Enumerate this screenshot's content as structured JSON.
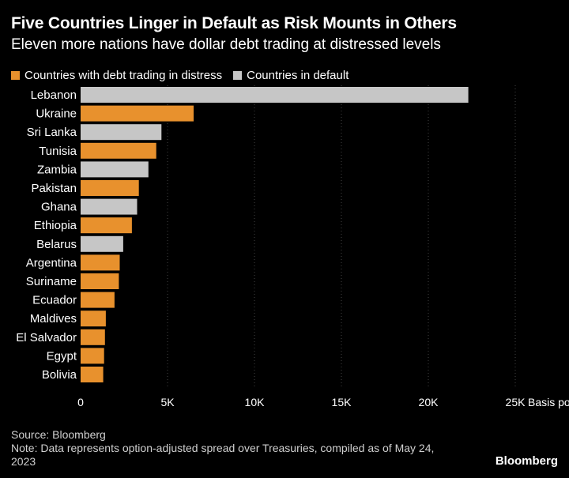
{
  "chart_data": {
    "type": "bar",
    "orientation": "horizontal",
    "title": "Five Countries Linger in Default as Risk Mounts in Others",
    "subtitle": "Eleven more nations have dollar debt trading at distressed levels",
    "legend": [
      {
        "label": "Countries with debt trading in distress",
        "color": "#e8912d"
      },
      {
        "label": "Countries in default",
        "color": "#c6c6c6"
      }
    ],
    "categories": [
      "Lebanon",
      "Ukraine",
      "Sri Lanka",
      "Tunisia",
      "Zambia",
      "Pakistan",
      "Ghana",
      "Ethiopia",
      "Belarus",
      "Argentina",
      "Suriname",
      "Ecuador",
      "Maldives",
      "El Salvador",
      "Egypt",
      "Bolivia"
    ],
    "values": [
      22300,
      6500,
      4650,
      4350,
      3900,
      3350,
      3250,
      2950,
      2450,
      2250,
      2200,
      1950,
      1450,
      1400,
      1350,
      1300
    ],
    "status": [
      "default",
      "distress",
      "default",
      "distress",
      "default",
      "distress",
      "default",
      "distress",
      "default",
      "distress",
      "distress",
      "distress",
      "distress",
      "distress",
      "distress",
      "distress"
    ],
    "x_ticks": [
      "0",
      "5K",
      "10K",
      "15K",
      "20K",
      "25K"
    ],
    "x_tick_values": [
      0,
      5000,
      10000,
      15000,
      20000,
      25000
    ],
    "xlabel": "Basis points",
    "xlim": [
      0,
      25000
    ]
  },
  "footer": {
    "source": "Source: Bloomberg",
    "note": "Note: Data represents option-adjusted spread over Treasuries, compiled as of May 24, 2023"
  },
  "brand": "Bloomberg"
}
